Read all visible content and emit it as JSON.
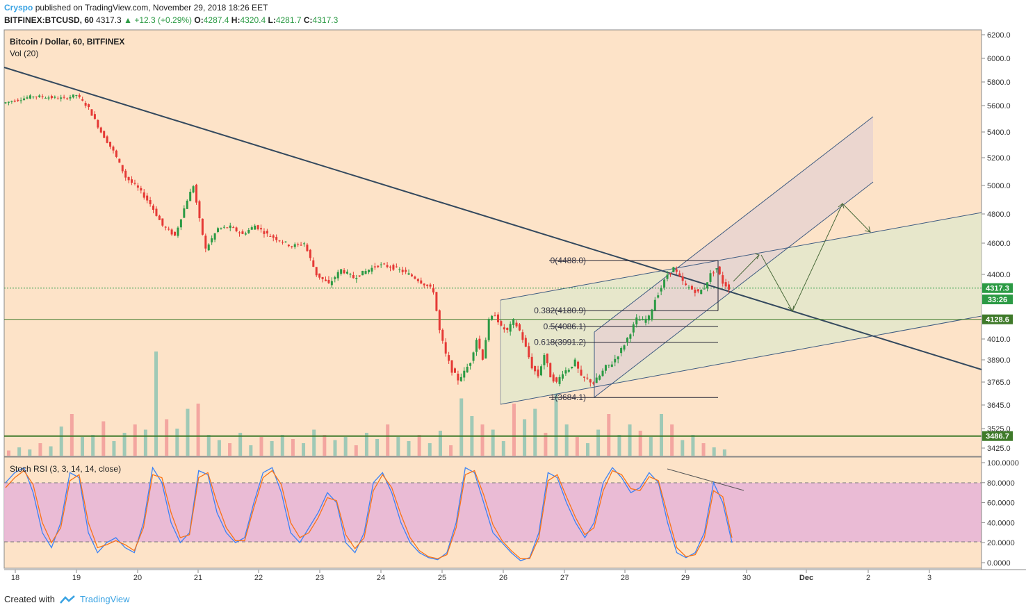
{
  "header": {
    "author": "Cryspo",
    "published_text": "published on TradingView.com, November 29, 2018 18:26 EET",
    "symbol": "BITFINEX:BTCUSD, 60",
    "last": "4317.3",
    "change": "+12.3 (+0.29%)",
    "open_label": "O:",
    "open": "4287.4",
    "high_label": "H:",
    "high": "4320.4",
    "low_label": "L:",
    "low": "4281.7",
    "close_label": "C:",
    "close": "4317.3"
  },
  "legend": {
    "title": "Bitcoin / Dollar, 60, BITFINEX",
    "volume": "Vol (20)",
    "stoch": "Stoch RSI (3, 3, 14, 14, close)"
  },
  "footer": {
    "created_with": "Created with",
    "brand": "TradingView"
  },
  "chart_data": [
    {
      "type": "candlestick",
      "title": "Bitcoin / Dollar, 60, BITFINEX",
      "x_tick_labels": [
        "18",
        "19",
        "20",
        "21",
        "22",
        "23",
        "24",
        "25",
        "26",
        "27",
        "28",
        "29",
        "30",
        "Dec",
        "2",
        "3"
      ],
      "y_tick_labels": [
        "6200.0",
        "6000.0",
        "5800.0",
        "5600.0",
        "5400.0",
        "5200.0",
        "5000.0",
        "4800.0",
        "4600.0",
        "4400.0",
        "4010.0",
        "3890.0",
        "3765.0",
        "3645.0",
        "3525.0",
        "3425.0"
      ],
      "y_tick_values": [
        6200,
        6000,
        5800,
        5600,
        5400,
        5200,
        5000,
        4800,
        4600,
        4400,
        4010,
        3890,
        3765,
        3645,
        3525,
        3425
      ],
      "price_labels": [
        {
          "text": "4317.3",
          "value": 4317.3,
          "color": "#2b9a44"
        },
        {
          "text": "33:26",
          "value": 4260,
          "color": "#2b9a44"
        },
        {
          "text": "4128.6",
          "value": 4128.6,
          "color": "#3f7a2a"
        },
        {
          "text": "3486.7",
          "value": 3486.7,
          "color": "#3f7a2a"
        }
      ],
      "horizontal_levels": [
        {
          "value": 4317.3,
          "style": "dotted",
          "color": "#2b9a44"
        },
        {
          "value": 4128.6,
          "style": "solid",
          "color": "#3f7a2a"
        },
        {
          "value": 3486.7,
          "style": "solid",
          "color": "#3f7a2a"
        }
      ],
      "fibonacci": [
        {
          "label": "0(4488.0)",
          "value": 4488.0
        },
        {
          "label": "0.382(4180.9)",
          "value": 4180.9
        },
        {
          "label": "0.5(4086.1)",
          "value": 4086.1
        },
        {
          "label": "0.618(3991.2)",
          "value": 3991.2
        },
        {
          "label": "1(3684.1)",
          "value": 3684.1
        }
      ],
      "price_path": [
        [
          0,
          5620
        ],
        [
          5,
          5680
        ],
        [
          10,
          5660
        ],
        [
          12,
          5690
        ],
        [
          14,
          5580
        ],
        [
          16,
          5400
        ],
        [
          18,
          5250
        ],
        [
          20,
          5060
        ],
        [
          22,
          4980
        ],
        [
          24,
          4870
        ],
        [
          26,
          4720
        ],
        [
          28,
          4650
        ],
        [
          30,
          4900
        ],
        [
          31,
          5000
        ],
        [
          32,
          4760
        ],
        [
          33,
          4560
        ],
        [
          35,
          4700
        ],
        [
          37,
          4710
        ],
        [
          39,
          4660
        ],
        [
          41,
          4720
        ],
        [
          43,
          4660
        ],
        [
          45,
          4620
        ],
        [
          47,
          4580
        ],
        [
          49,
          4600
        ],
        [
          51,
          4400
        ],
        [
          53,
          4340
        ],
        [
          55,
          4430
        ],
        [
          57,
          4380
        ],
        [
          59,
          4420
        ],
        [
          61,
          4460
        ],
        [
          63,
          4450
        ],
        [
          65,
          4420
        ],
        [
          67,
          4380
        ],
        [
          69,
          4330
        ],
        [
          70,
          4300
        ],
        [
          71,
          4060
        ],
        [
          72,
          3920
        ],
        [
          73,
          3830
        ],
        [
          74,
          3780
        ],
        [
          75,
          3820
        ],
        [
          76,
          3880
        ],
        [
          77,
          4010
        ],
        [
          78,
          3900
        ],
        [
          79,
          4120
        ],
        [
          80,
          4160
        ],
        [
          81,
          4080
        ],
        [
          82,
          4060
        ],
        [
          83,
          4120
        ],
        [
          84,
          4060
        ],
        [
          85,
          3960
        ],
        [
          86,
          3850
        ],
        [
          87,
          3800
        ],
        [
          88,
          3920
        ],
        [
          89,
          3800
        ],
        [
          90,
          3760
        ],
        [
          91,
          3820
        ],
        [
          92,
          3840
        ],
        [
          93,
          3880
        ],
        [
          94,
          3790
        ],
        [
          95,
          3780
        ],
        [
          96,
          3760
        ],
        [
          97,
          3800
        ],
        [
          98,
          3850
        ],
        [
          99,
          3870
        ],
        [
          100,
          3920
        ],
        [
          101,
          3980
        ],
        [
          102,
          4050
        ],
        [
          103,
          4130
        ],
        [
          104,
          4120
        ],
        [
          105,
          4140
        ],
        [
          106,
          4250
        ],
        [
          107,
          4320
        ],
        [
          108,
          4400
        ],
        [
          109,
          4440
        ],
        [
          110,
          4380
        ],
        [
          111,
          4330
        ],
        [
          112,
          4310
        ],
        [
          113,
          4290
        ],
        [
          114,
          4320
        ],
        [
          115,
          4400
        ],
        [
          116,
          4440
        ],
        [
          117,
          4350
        ],
        [
          118,
          4317.3
        ]
      ]
    },
    {
      "type": "bar",
      "title": "Vol (20)",
      "note": "volume histogram, values relative 0-1",
      "values": [
        0.05,
        0.08,
        0.06,
        0.12,
        0.09,
        0.28,
        0.4,
        0.18,
        0.2,
        0.33,
        0.14,
        0.22,
        0.3,
        0.25,
        1.0,
        0.35,
        0.26,
        0.45,
        0.5,
        0.2,
        0.15,
        0.12,
        0.22,
        0.1,
        0.18,
        0.14,
        0.2,
        0.16,
        0.12,
        0.25,
        0.2,
        0.15,
        0.18,
        0.1,
        0.22,
        0.16,
        0.3,
        0.18,
        0.14,
        0.2,
        0.12,
        0.24,
        0.1,
        0.55,
        0.38,
        0.3,
        0.25,
        0.14,
        0.5,
        0.35,
        0.45,
        0.22,
        0.6,
        0.3,
        0.18,
        0.12,
        0.25,
        0.4,
        0.2,
        0.3,
        0.24,
        0.18,
        0.4,
        0.3,
        0.15,
        0.2,
        0.12,
        0.08,
        0.06
      ]
    },
    {
      "type": "line",
      "title": "Stoch RSI (3, 3, 14, 14, close)",
      "y_tick_labels": [
        "100.0000",
        "80.0000",
        "60.0000",
        "40.0000",
        "20.0000",
        "0.0000"
      ],
      "y_tick_values": [
        100,
        80,
        60,
        40,
        20,
        0
      ],
      "bands": [
        80,
        20
      ],
      "series": [
        {
          "color": "#3b82f6",
          "values": [
            80,
            90,
            95,
            70,
            30,
            15,
            40,
            90,
            85,
            30,
            10,
            20,
            25,
            15,
            10,
            40,
            95,
            80,
            40,
            20,
            30,
            92,
            88,
            50,
            30,
            20,
            25,
            60,
            90,
            95,
            70,
            30,
            20,
            35,
            50,
            70,
            60,
            20,
            10,
            30,
            80,
            90,
            70,
            40,
            20,
            10,
            5,
            3,
            10,
            40,
            95,
            90,
            60,
            30,
            20,
            10,
            2,
            5,
            30,
            90,
            85,
            60,
            40,
            25,
            40,
            80,
            95,
            85,
            70,
            75,
            90,
            80,
            40,
            10,
            5,
            10,
            30,
            80,
            60,
            20
          ]
        },
        {
          "color": "#f97316",
          "values": [
            75,
            85,
            92,
            78,
            40,
            20,
            35,
            82,
            88,
            40,
            15,
            18,
            22,
            18,
            12,
            35,
            88,
            85,
            50,
            25,
            28,
            85,
            90,
            60,
            35,
            22,
            22,
            55,
            85,
            92,
            78,
            40,
            25,
            30,
            45,
            65,
            62,
            28,
            14,
            25,
            72,
            88,
            75,
            48,
            25,
            12,
            6,
            4,
            8,
            35,
            88,
            92,
            68,
            38,
            22,
            12,
            4,
            4,
            25,
            82,
            88,
            66,
            45,
            28,
            35,
            72,
            92,
            88,
            74,
            72,
            86,
            82,
            48,
            15,
            6,
            8,
            25,
            72,
            66,
            25
          ]
        }
      ]
    }
  ]
}
